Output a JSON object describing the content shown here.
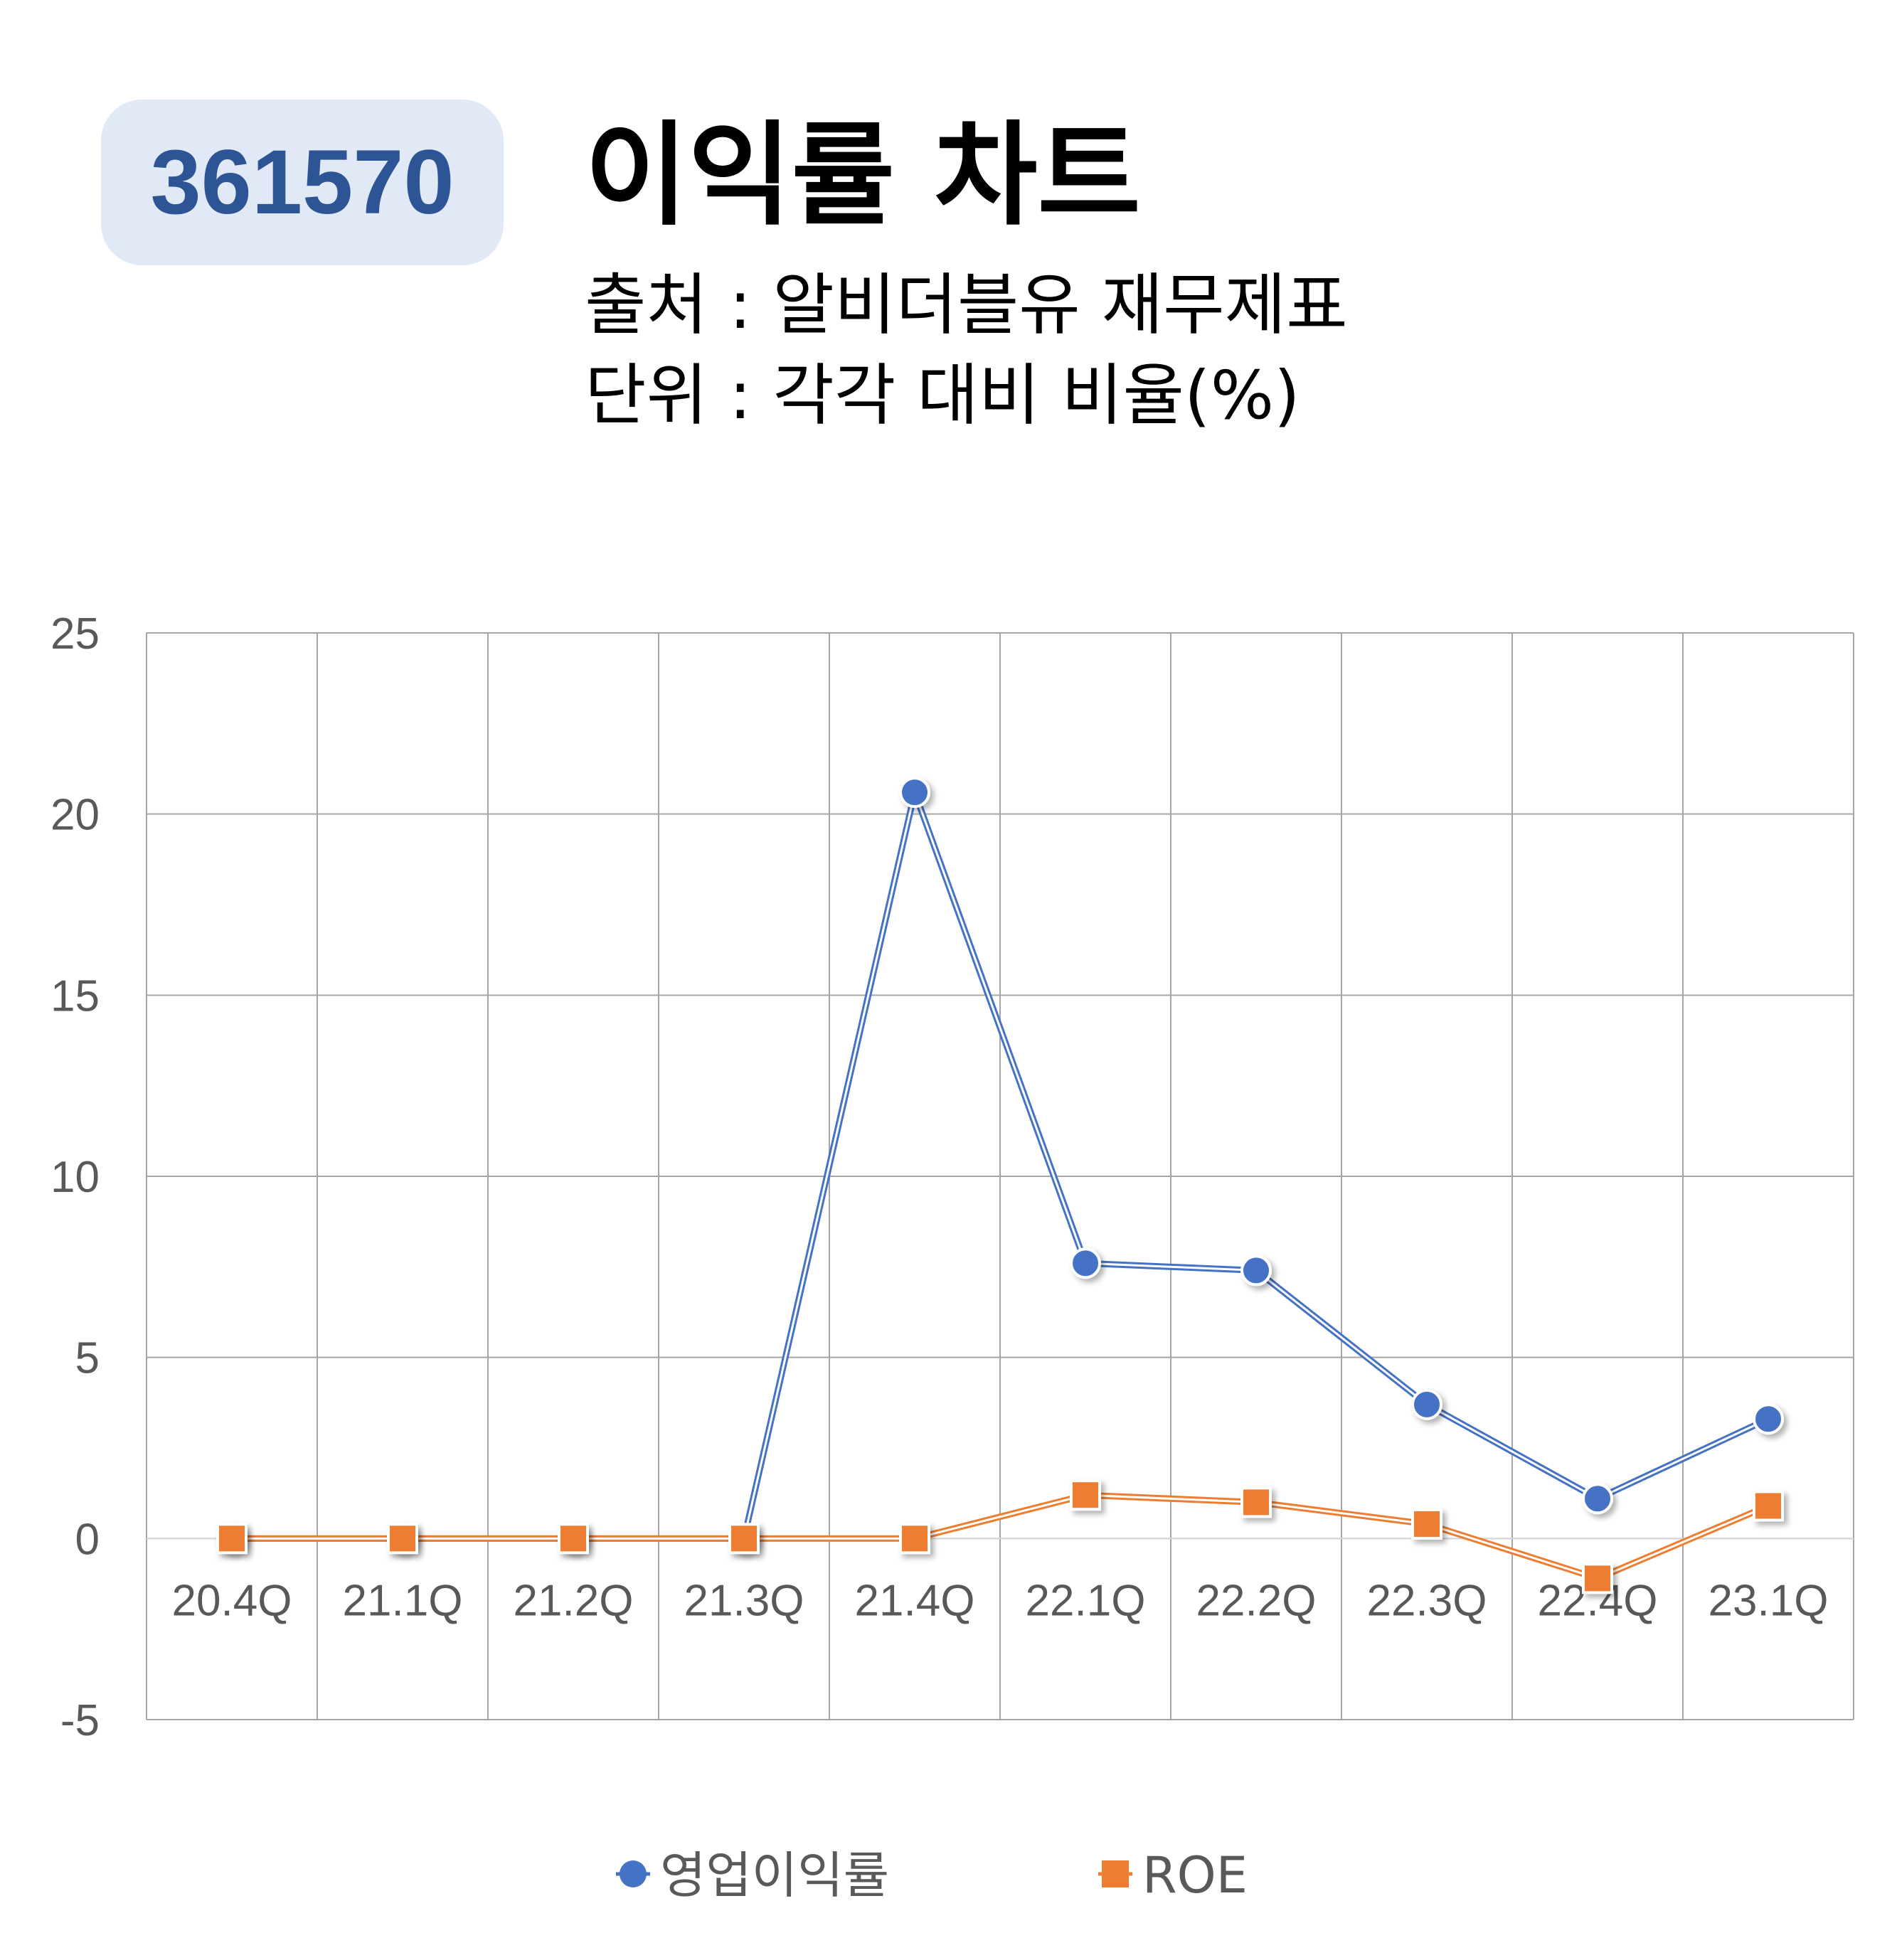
{
  "header": {
    "code": "361570",
    "title": "이익률 차트",
    "source": "출처 : 알비더블유 재무제표",
    "unit": "단위 : 각각 대비 비율(%)"
  },
  "colors": {
    "badge_bg": "#e1e8f6",
    "badge_text": "#2d5596",
    "operating_margin": "#4472c4",
    "roe": "#ed7d31",
    "grid": "#a6a6a6",
    "tick_text": "#595959"
  },
  "chart_data": {
    "type": "line",
    "categories": [
      "20.4Q",
      "21.1Q",
      "21.2Q",
      "21.3Q",
      "21.4Q",
      "22.1Q",
      "22.2Q",
      "22.3Q",
      "22.4Q",
      "23.1Q"
    ],
    "series": [
      {
        "name": "영업이익률",
        "marker": "circle",
        "color": "#4472c4",
        "values": [
          0,
          0,
          0,
          0,
          20.6,
          7.6,
          7.4,
          3.7,
          1.1,
          3.3
        ]
      },
      {
        "name": "ROE",
        "marker": "square",
        "color": "#ed7d31",
        "values": [
          0,
          0,
          0,
          0,
          0,
          1.2,
          1.0,
          0.4,
          -1.1,
          0.9
        ]
      }
    ],
    "ylim": [
      -5,
      25
    ],
    "yticks": [
      "-5",
      "0",
      "5",
      "10",
      "15",
      "20",
      "25"
    ],
    "grid": true,
    "legend": "bottom"
  }
}
